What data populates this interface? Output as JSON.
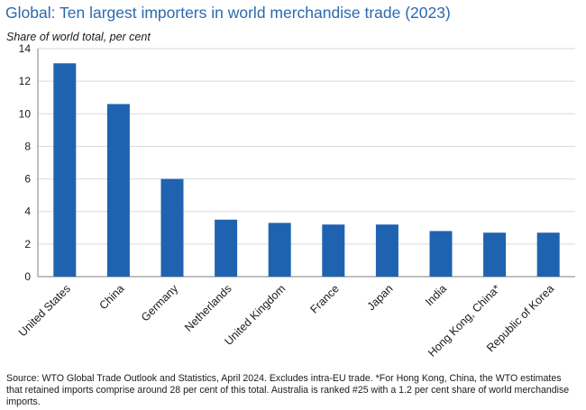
{
  "header": {
    "title": "Global: Ten largest importers in world merchandise trade (2023)",
    "subtitle": "Share of world total, per cent"
  },
  "footer": {
    "source": "Source: WTO Global Trade Outlook and Statistics, April 2024. Excludes intra-EU trade. *For Hong Kong, China, the WTO estimates that retained imports comprise around 28 per cent of this total. Australia is ranked #25 with a 1.2 per cent share of world merchandise imports."
  },
  "colors": {
    "bar": "#1f63b0",
    "title": "#2a6aad",
    "grid": "#d9d9d9",
    "axis": "#7f7f7f"
  },
  "chart_data": {
    "type": "bar",
    "title": "Global: Ten largest importers in world merchandise trade (2023)",
    "ylabel": "Share of world total, per cent",
    "xlabel": "",
    "categories": [
      "United States",
      "China",
      "Germany",
      "Netherlands",
      "United Kingdom",
      "France",
      "Japan",
      "India",
      "Hong Kong, China*",
      "Republic of Korea"
    ],
    "values": [
      13.1,
      10.6,
      6.0,
      3.5,
      3.3,
      3.2,
      3.2,
      2.8,
      2.7,
      2.7
    ],
    "ylim": [
      0,
      14
    ],
    "yticks": [
      0,
      2,
      4,
      6,
      8,
      10,
      12,
      14
    ],
    "grid": true,
    "legend": "none"
  }
}
